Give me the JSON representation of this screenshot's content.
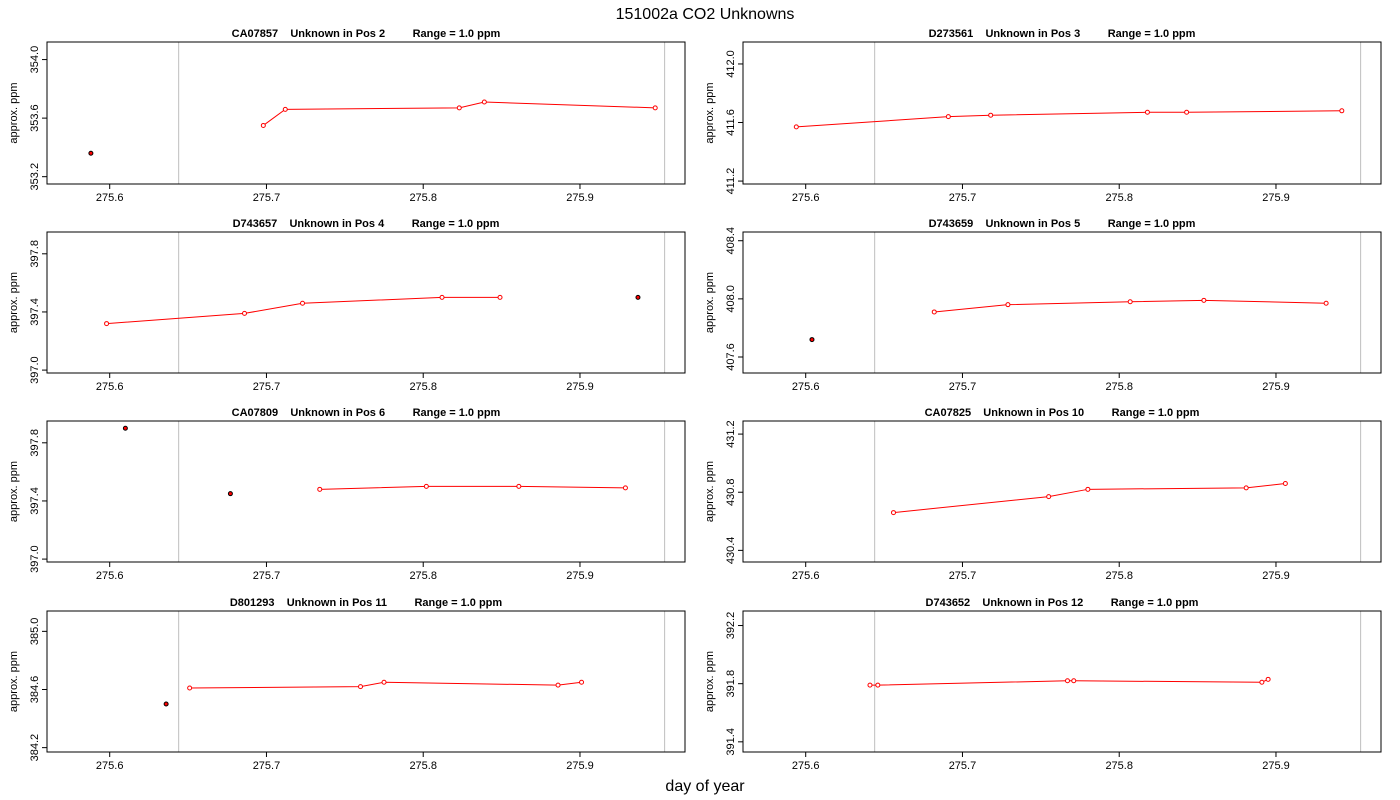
{
  "page": {
    "title": "151002a  CO2 Unknowns",
    "xlabel": "day of year"
  },
  "chart_data": [
    {
      "type": "line",
      "title": "CA07857    Unknown in Pos 2         Range = 1.0 ppm",
      "ylabel": "approx. ppm",
      "xlim": [
        275.56,
        275.967
      ],
      "ylim": [
        353.15,
        354.12
      ],
      "xticks": [
        "275.6",
        "275.7",
        "275.8",
        "275.9"
      ],
      "yticks": [
        "353.2",
        "353.6",
        "354.0"
      ],
      "vlines": [
        275.644,
        275.954
      ],
      "line": {
        "x": [
          275.698,
          275.712,
          275.823,
          275.839,
          275.948
        ],
        "y": [
          353.55,
          353.66,
          353.67,
          353.71,
          353.67
        ]
      },
      "outliers": {
        "x": [
          275.588
        ],
        "y": [
          353.36
        ]
      }
    },
    {
      "type": "line",
      "title": "D273561    Unknown in Pos 3         Range = 1.0 ppm",
      "ylabel": "approx. ppm",
      "xlim": [
        275.56,
        275.967
      ],
      "ylim": [
        411.18,
        412.15
      ],
      "xticks": [
        "275.6",
        "275.7",
        "275.8",
        "275.9"
      ],
      "yticks": [
        "411.2",
        "411.6",
        "412.0"
      ],
      "vlines": [
        275.644,
        275.954
      ],
      "line": {
        "x": [
          275.594,
          275.691,
          275.718,
          275.818,
          275.843,
          275.942
        ],
        "y": [
          411.57,
          411.64,
          411.65,
          411.67,
          411.67,
          411.68
        ]
      },
      "outliers": {
        "x": [],
        "y": []
      }
    },
    {
      "type": "line",
      "title": "D743657    Unknown in Pos 4         Range = 1.0 ppm",
      "ylabel": "approx. ppm",
      "xlim": [
        275.56,
        275.967
      ],
      "ylim": [
        396.98,
        397.95
      ],
      "xticks": [
        "275.6",
        "275.7",
        "275.8",
        "275.9"
      ],
      "yticks": [
        "397.0",
        "397.4",
        "397.8"
      ],
      "vlines": [
        275.644,
        275.954
      ],
      "line": {
        "x": [
          275.598,
          275.686,
          275.723,
          275.812,
          275.849
        ],
        "y": [
          397.32,
          397.39,
          397.46,
          397.5,
          397.5
        ]
      },
      "outliers": {
        "x": [
          275.937
        ],
        "y": [
          397.5
        ]
      }
    },
    {
      "type": "line",
      "title": "D743659    Unknown in Pos 5         Range = 1.0 ppm",
      "ylabel": "approx. ppm",
      "xlim": [
        275.56,
        275.967
      ],
      "ylim": [
        407.49,
        408.46
      ],
      "xticks": [
        "275.6",
        "275.7",
        "275.8",
        "275.9"
      ],
      "yticks": [
        "407.6",
        "408.0",
        "408.4"
      ],
      "vlines": [
        275.644,
        275.954
      ],
      "line": {
        "x": [
          275.682,
          275.729,
          275.807,
          275.854,
          275.932
        ],
        "y": [
          407.91,
          407.96,
          407.98,
          407.99,
          407.97
        ]
      },
      "outliers": {
        "x": [
          275.604
        ],
        "y": [
          407.72
        ]
      }
    },
    {
      "type": "line",
      "title": "CA07809    Unknown in Pos 6         Range = 1.0 ppm",
      "ylabel": "approx. ppm",
      "xlim": [
        275.56,
        275.967
      ],
      "ylim": [
        396.98,
        397.95
      ],
      "xticks": [
        "275.6",
        "275.7",
        "275.8",
        "275.9"
      ],
      "yticks": [
        "397.0",
        "397.4",
        "397.8"
      ],
      "vlines": [
        275.644,
        275.954
      ],
      "line": {
        "x": [
          275.734,
          275.802,
          275.861,
          275.929
        ],
        "y": [
          397.48,
          397.5,
          397.5,
          397.49
        ]
      },
      "outliers": {
        "x": [
          275.61,
          275.677
        ],
        "y": [
          397.9,
          397.45
        ]
      }
    },
    {
      "type": "line",
      "title": "CA07825    Unknown in Pos 10         Range = 1.0 ppm",
      "ylabel": "approx. ppm",
      "xlim": [
        275.56,
        275.967
      ],
      "ylim": [
        430.32,
        431.29
      ],
      "xticks": [
        "275.6",
        "275.7",
        "275.8",
        "275.9"
      ],
      "yticks": [
        "430.4",
        "430.8",
        "431.2"
      ],
      "vlines": [
        275.644,
        275.954
      ],
      "line": {
        "x": [
          275.656,
          275.755,
          275.78,
          275.881,
          275.906
        ],
        "y": [
          430.66,
          430.77,
          430.82,
          430.83,
          430.86
        ]
      },
      "outliers": {
        "x": [],
        "y": []
      }
    },
    {
      "type": "line",
      "title": "D801293    Unknown in Pos 11         Range = 1.0 ppm",
      "ylabel": "approx. ppm",
      "xlim": [
        275.56,
        275.967
      ],
      "ylim": [
        384.17,
        385.14
      ],
      "xticks": [
        "275.6",
        "275.7",
        "275.8",
        "275.9"
      ],
      "yticks": [
        "384.2",
        "384.6",
        "385.0"
      ],
      "vlines": [
        275.644,
        275.954
      ],
      "line": {
        "x": [
          275.651,
          275.76,
          275.775,
          275.886,
          275.901
        ],
        "y": [
          384.61,
          384.62,
          384.65,
          384.63,
          384.65
        ]
      },
      "outliers": {
        "x": [
          275.636
        ],
        "y": [
          384.5
        ]
      }
    },
    {
      "type": "line",
      "title": "D743652    Unknown in Pos 12         Range = 1.0 ppm",
      "ylabel": "approx. ppm",
      "xlim": [
        275.56,
        275.967
      ],
      "ylim": [
        391.33,
        392.3
      ],
      "xticks": [
        "275.6",
        "275.7",
        "275.8",
        "275.9"
      ],
      "yticks": [
        "391.4",
        "391.8",
        "392.2"
      ],
      "vlines": [
        275.644,
        275.954
      ],
      "line": {
        "x": [
          275.641,
          275.646,
          275.767,
          275.771,
          275.891,
          275.895
        ],
        "y": [
          391.79,
          391.79,
          391.82,
          391.82,
          391.81,
          391.83
        ]
      },
      "outliers": {
        "x": [],
        "y": []
      }
    }
  ],
  "colors": {
    "line": "#ff0000",
    "outlier_edge": "#000000",
    "outlier_fill": "#ff0000",
    "vline": "#bebebe",
    "frame": "#000000"
  }
}
